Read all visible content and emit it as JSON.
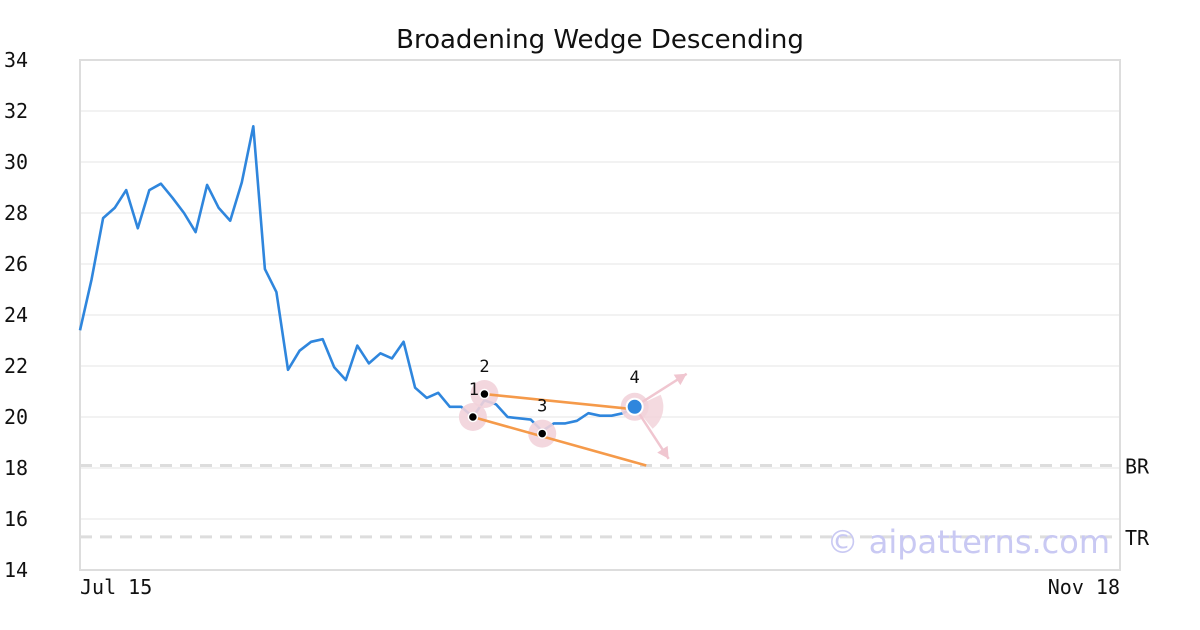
{
  "chart_data": {
    "type": "line",
    "title": "Broadening Wedge Descending",
    "xlabel": "",
    "ylabel": "",
    "x_tick_labels": [
      "Jul 15",
      "Nov 18"
    ],
    "x_range": [
      0,
      90
    ],
    "ylim": [
      14,
      34
    ],
    "y_ticks": [
      "34",
      "32",
      "30",
      "28",
      "26",
      "24",
      "22",
      "20",
      "18",
      "16",
      "14"
    ],
    "grid": "horizontal",
    "series": [
      {
        "color": "#2f86dd",
        "x": [
          0,
          1,
          2,
          3,
          4,
          5,
          6,
          7,
          8,
          9,
          10,
          11,
          12,
          13,
          14,
          15,
          16,
          17,
          18,
          19,
          20,
          21,
          22,
          23,
          24,
          25,
          26,
          27,
          28,
          29,
          30,
          31,
          32,
          33,
          34,
          35,
          36,
          37,
          38,
          39,
          40,
          41,
          42,
          43,
          44,
          45,
          46,
          47,
          48,
          49
        ],
        "values": [
          23.4,
          25.4,
          27.8,
          28.2,
          28.9,
          27.4,
          28.9,
          29.15,
          28.6,
          28.0,
          27.25,
          29.1,
          28.2,
          27.7,
          29.2,
          31.4,
          25.8,
          24.9,
          21.85,
          22.6,
          22.95,
          23.05,
          21.95,
          21.45,
          22.8,
          22.1,
          22.5,
          22.3,
          22.95,
          21.15,
          20.75,
          20.95,
          20.4,
          20.4,
          20.0,
          20.65,
          20.5,
          20.0,
          19.95,
          19.9,
          19.45,
          19.75,
          19.75,
          19.85,
          20.15,
          20.05,
          20.05,
          20.15,
          20.4,
          20.5
        ]
      }
    ],
    "pattern": {
      "points": [
        {
          "label": "1",
          "x": 34,
          "y": 20.0
        },
        {
          "label": "2",
          "x": 35,
          "y": 20.9
        },
        {
          "label": "3",
          "x": 40,
          "y": 19.35
        },
        {
          "label": "4",
          "x": 48,
          "y": 20.4
        }
      ],
      "upper_line": {
        "from": [
          35,
          20.9
        ],
        "to": [
          48,
          20.3
        ]
      },
      "lower_line": {
        "from": [
          34,
          20.0
        ],
        "to": [
          49,
          18.1
        ]
      },
      "line_color": "#f59a4a",
      "marker_color": "#f2d3da",
      "current_point_color": "#2f86dd"
    },
    "reference_lines": [
      {
        "label": "BR",
        "y": 18.1
      },
      {
        "label": "TR",
        "y": 15.3
      }
    ]
  },
  "watermark": "© aipatterns.com"
}
